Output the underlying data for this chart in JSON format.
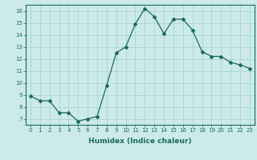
{
  "x": [
    0,
    1,
    2,
    3,
    4,
    5,
    6,
    7,
    8,
    9,
    10,
    11,
    12,
    13,
    14,
    15,
    16,
    17,
    18,
    19,
    20,
    21,
    22,
    23
  ],
  "y": [
    8.9,
    8.5,
    8.5,
    7.5,
    7.5,
    6.8,
    7.0,
    7.2,
    9.8,
    12.5,
    13.0,
    14.9,
    16.2,
    15.5,
    14.1,
    15.3,
    15.3,
    14.4,
    12.6,
    12.2,
    12.2,
    11.7,
    11.5,
    11.2
  ],
  "line_color": "#1a6b5a",
  "bg_color": "#cceaea",
  "grid_color": "#aad4d4",
  "xlabel": "Humidex (Indice chaleur)",
  "xlim": [
    -0.5,
    23.5
  ],
  "ylim": [
    6.5,
    16.5
  ],
  "yticks": [
    7,
    8,
    9,
    10,
    11,
    12,
    13,
    14,
    15,
    16
  ],
  "xticks": [
    0,
    1,
    2,
    3,
    4,
    5,
    6,
    7,
    8,
    9,
    10,
    11,
    12,
    13,
    14,
    15,
    16,
    17,
    18,
    19,
    20,
    21,
    22,
    23
  ],
  "marker": "D",
  "marker_size": 2.0,
  "line_width": 0.9,
  "tick_fontsize": 5.0,
  "xlabel_fontsize": 6.5
}
